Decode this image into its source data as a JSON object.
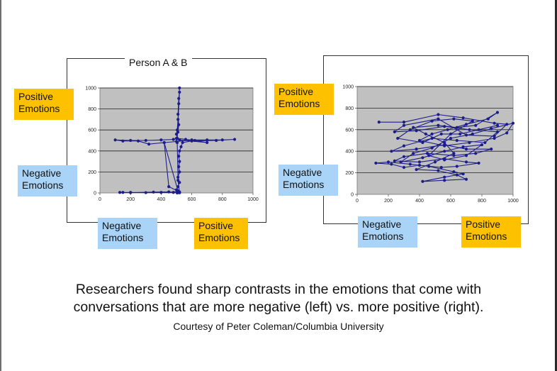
{
  "labels": {
    "positive": "Positive Emotions",
    "negative": "Negative Emotions"
  },
  "caption": {
    "line1": "Researchers found sharp contrasts in the emotions that come with",
    "line2": "conversations that are more negative (left) vs. more positive (right).",
    "credit": "Courtesy of Peter Coleman/Columbia University"
  },
  "chart_data": [
    {
      "type": "line",
      "title": "Person A & B",
      "xlim": [
        0,
        1000
      ],
      "ylim": [
        0,
        1000
      ],
      "xticks": [
        0,
        200,
        400,
        600,
        800,
        1000
      ],
      "yticks": [
        0,
        200,
        400,
        600,
        800,
        1000
      ],
      "grid": true,
      "color": "#1d1d8a",
      "series": [
        {
          "points": [
            [
              520,
              1000
            ],
            [
              515,
              850
            ],
            [
              510,
              700
            ],
            [
              505,
              600
            ],
            [
              500,
              560
            ],
            [
              505,
              520
            ],
            [
              480,
              510
            ],
            [
              400,
              505
            ],
            [
              300,
              500
            ],
            [
              200,
              500
            ],
            [
              100,
              505
            ],
            [
              150,
              495
            ],
            [
              250,
              495
            ],
            [
              320,
              465
            ],
            [
              420,
              480
            ],
            [
              500,
              490
            ],
            [
              600,
              505
            ],
            [
              700,
              505
            ],
            [
              800,
              505
            ],
            [
              880,
              510
            ],
            [
              760,
              500
            ],
            [
              600,
              495
            ],
            [
              540,
              480
            ],
            [
              530,
              440
            ],
            [
              520,
              400
            ],
            [
              515,
              350
            ],
            [
              520,
              300
            ],
            [
              515,
              250
            ],
            [
              520,
              200
            ],
            [
              510,
              150
            ],
            [
              520,
              100
            ],
            [
              510,
              60
            ],
            [
              500,
              30
            ],
            [
              520,
              10
            ],
            [
              450,
              60
            ],
            [
              420,
              480
            ],
            [
              510,
              20
            ],
            [
              480,
              5
            ],
            [
              400,
              5
            ],
            [
              300,
              3
            ],
            [
              200,
              5
            ],
            [
              150,
              5
            ],
            [
              130,
              5
            ],
            [
              200,
              3
            ],
            [
              350,
              8
            ],
            [
              450,
              10
            ],
            [
              510,
              5
            ],
            [
              520,
              3
            ],
            [
              505,
              0
            ],
            [
              520,
              2
            ],
            [
              510,
              120
            ],
            [
              505,
              480
            ],
            [
              500,
              520
            ],
            [
              510,
              580
            ],
            [
              515,
              650
            ],
            [
              510,
              750
            ],
            [
              515,
              900
            ],
            [
              520,
              960
            ],
            [
              505,
              520
            ],
            [
              560,
              510
            ],
            [
              620,
              500
            ],
            [
              700,
              480
            ],
            [
              520,
              505
            ]
          ]
        }
      ]
    },
    {
      "type": "line",
      "title": "",
      "xlim": [
        0,
        1000
      ],
      "ylim": [
        0,
        1000
      ],
      "xticks": [
        0,
        200,
        400,
        600,
        800,
        1000
      ],
      "yticks": [
        0,
        200,
        400,
        600,
        800,
        1000
      ],
      "grid": true,
      "color": "#1d1d8a",
      "series": [
        {
          "points": [
            [
              140,
              670
            ],
            [
              300,
              670
            ],
            [
              520,
              740
            ],
            [
              680,
              710
            ],
            [
              880,
              660
            ],
            [
              960,
              650
            ],
            [
              880,
              540
            ],
            [
              700,
              550
            ],
            [
              520,
              700
            ],
            [
              300,
              640
            ],
            [
              240,
              580
            ],
            [
              380,
              590
            ],
            [
              560,
              630
            ],
            [
              720,
              600
            ],
            [
              900,
              580
            ],
            [
              820,
              480
            ],
            [
              640,
              500
            ],
            [
              480,
              520
            ],
            [
              300,
              450
            ],
            [
              220,
              400
            ],
            [
              380,
              420
            ],
            [
              560,
              460
            ],
            [
              700,
              420
            ],
            [
              860,
              420
            ],
            [
              760,
              380
            ],
            [
              620,
              360
            ],
            [
              450,
              380
            ],
            [
              300,
              350
            ],
            [
              240,
              310
            ],
            [
              400,
              300
            ],
            [
              560,
              330
            ],
            [
              700,
              300
            ],
            [
              780,
              290
            ],
            [
              640,
              260
            ],
            [
              540,
              250
            ],
            [
              400,
              270
            ],
            [
              300,
              250
            ],
            [
              220,
              280
            ],
            [
              120,
              290
            ],
            [
              200,
              300
            ],
            [
              340,
              280
            ],
            [
              460,
              260
            ],
            [
              620,
              210
            ],
            [
              680,
              190
            ],
            [
              560,
              160
            ],
            [
              420,
              120
            ],
            [
              560,
              130
            ],
            [
              700,
              140
            ],
            [
              640,
              180
            ],
            [
              520,
              220
            ],
            [
              380,
              230
            ],
            [
              500,
              300
            ],
            [
              620,
              380
            ],
            [
              560,
              480
            ],
            [
              440,
              560
            ],
            [
              360,
              620
            ],
            [
              520,
              640
            ],
            [
              640,
              620
            ],
            [
              760,
              640
            ],
            [
              900,
              760
            ],
            [
              840,
              700
            ],
            [
              700,
              650
            ],
            [
              580,
              600
            ],
            [
              480,
              560
            ],
            [
              400,
              500
            ],
            [
              560,
              450
            ],
            [
              720,
              480
            ],
            [
              880,
              520
            ],
            [
              960,
              570
            ],
            [
              1000,
              660
            ],
            [
              860,
              610
            ],
            [
              740,
              560
            ],
            [
              600,
              520
            ],
            [
              480,
              430
            ],
            [
              360,
              380
            ],
            [
              280,
              300
            ],
            [
              420,
              340
            ],
            [
              560,
              400
            ],
            [
              680,
              440
            ],
            [
              800,
              460
            ],
            [
              700,
              360
            ],
            [
              560,
              320
            ],
            [
              460,
              360
            ],
            [
              600,
              560
            ],
            [
              740,
              680
            ],
            [
              620,
              700
            ],
            [
              480,
              680
            ],
            [
              340,
              600
            ],
            [
              260,
              520
            ],
            [
              420,
              480
            ],
            [
              540,
              560
            ],
            [
              660,
              560
            ],
            [
              780,
              600
            ],
            [
              900,
              640
            ]
          ]
        }
      ]
    }
  ]
}
